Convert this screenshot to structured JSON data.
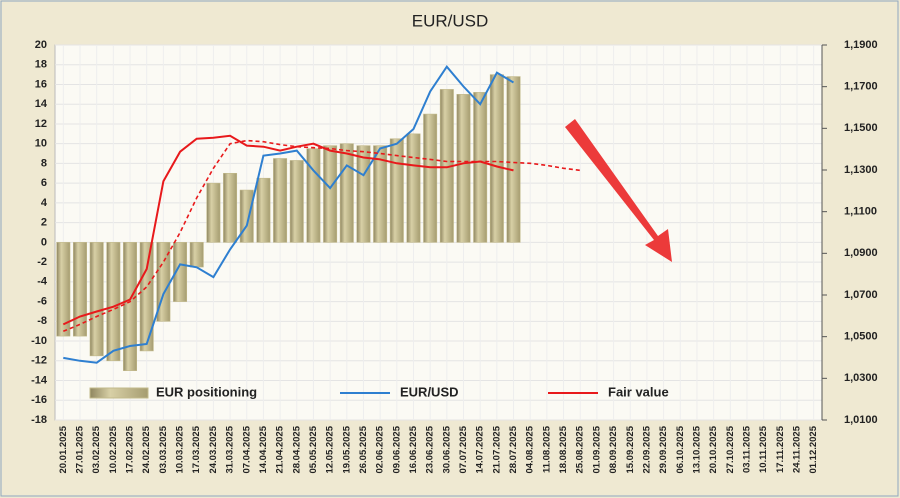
{
  "chart_data": {
    "type": "bar_line",
    "title": "EUR/USD",
    "categories": [
      "20.01.2025",
      "27.01.2025",
      "03.02.2025",
      "10.02.2025",
      "17.02.2025",
      "24.02.2025",
      "03.03.2025",
      "10.03.2025",
      "17.03.2025",
      "24.03.2025",
      "31.03.2025",
      "07.04.2025",
      "14.04.2025",
      "21.04.2025",
      "28.04.2025",
      "05.05.2025",
      "12.05.2025",
      "19.05.2025",
      "26.05.2025",
      "02.06.2025",
      "09.06.2025",
      "16.06.2025",
      "23.06.2025",
      "30.06.2025",
      "07.07.2025",
      "14.07.2025",
      "21.07.2025",
      "28.07.2025",
      "04.08.2025",
      "11.08.2025",
      "18.08.2025",
      "25.08.2025",
      "01.09.2025",
      "08.09.2025",
      "15.09.2025",
      "22.09.2025",
      "29.09.2025",
      "06.10.2025",
      "13.10.2025",
      "20.10.2025",
      "27.10.2025",
      "03.11.2025",
      "10.11.2025",
      "17.11.2025",
      "24.11.2025",
      "01.12.2025"
    ],
    "series": [
      {
        "name": "EUR positioning",
        "type": "bar",
        "color": "#c2b98a",
        "axis": "y",
        "values": [
          -9.5,
          -9.5,
          -11.5,
          -12,
          -13,
          -11,
          -8,
          -6,
          -2.5,
          6,
          7,
          5.3,
          6.5,
          8.5,
          8.3,
          9.5,
          9.8,
          10,
          9.8,
          9.8,
          10.5,
          11,
          13,
          15.5,
          15,
          15.2,
          17,
          16.8,
          null,
          null,
          null,
          null,
          null,
          null,
          null,
          null,
          null,
          null,
          null,
          null,
          null,
          null,
          null,
          null,
          null,
          null
        ]
      },
      {
        "name": "EUR/USD",
        "type": "line",
        "color": "#2e7fd0",
        "axis": "y2",
        "values": [
          1.0398,
          1.0384,
          1.0375,
          1.0432,
          1.0455,
          1.0465,
          1.0705,
          1.0847,
          1.0833,
          1.0786,
          1.0919,
          1.1033,
          1.1369,
          1.1379,
          1.1393,
          1.1298,
          1.1213,
          1.1322,
          1.1275,
          1.1403,
          1.1426,
          1.1497,
          1.1677,
          1.1796,
          1.1701,
          1.1616,
          1.1767,
          1.172,
          null,
          null,
          null,
          null,
          null,
          null,
          null,
          null,
          null,
          null,
          null,
          null,
          null,
          null,
          null,
          null,
          null,
          null
        ]
      },
      {
        "name": "Fair value",
        "type": "line",
        "color": "#e8191b",
        "axis": "y2",
        "values": [
          1.0559,
          1.0597,
          1.0621,
          1.0644,
          1.0678,
          1.0825,
          1.1246,
          1.1388,
          1.145,
          1.1455,
          1.1464,
          1.1417,
          1.1412,
          1.1393,
          1.1412,
          1.1426,
          1.1393,
          1.1379,
          1.136,
          1.1351,
          1.1332,
          1.1322,
          1.1313,
          1.1313,
          1.1332,
          1.1341,
          1.1317,
          1.1298,
          null,
          null,
          null,
          null,
          null,
          null,
          null,
          null,
          null,
          null,
          null,
          null,
          null,
          null,
          null,
          null,
          null,
          null
        ]
      },
      {
        "type": "line",
        "dashed": true,
        "color": "#e8191b",
        "axis": "y2",
        "values": [
          1.0526,
          1.0559,
          1.0597,
          1.0631,
          1.0668,
          1.0739,
          1.0858,
          1.1,
          1.1166,
          1.1308,
          1.1426,
          1.1441,
          1.1436,
          1.1422,
          1.1412,
          1.1407,
          1.1403,
          1.1393,
          1.1388,
          1.1379,
          1.1369,
          1.136,
          1.1351,
          1.1341,
          1.1341,
          1.1341,
          1.1341,
          1.1336,
          1.1332,
          1.1322,
          1.1308,
          1.1298,
          null,
          null,
          null,
          null,
          null,
          null,
          null,
          null,
          null,
          null,
          null,
          null,
          null,
          null
        ]
      }
    ],
    "ylim": [
      -18,
      20
    ],
    "yticks": [
      -18,
      -16,
      -14,
      -12,
      -10,
      -8,
      -6,
      -4,
      -2,
      0,
      2,
      4,
      6,
      8,
      10,
      12,
      14,
      16,
      18,
      20
    ],
    "y2lim": [
      1.01,
      1.19
    ],
    "y2ticks": [
      {
        "value": 1.01,
        "label": "1,0100"
      },
      {
        "value": 1.03,
        "label": "1,0300"
      },
      {
        "value": 1.05,
        "label": "1,0500"
      },
      {
        "value": 1.07,
        "label": "1,0700"
      },
      {
        "value": 1.09,
        "label": "1,0900"
      },
      {
        "value": 1.11,
        "label": "1,1100"
      },
      {
        "value": 1.13,
        "label": "1,1300"
      },
      {
        "value": 1.15,
        "label": "1,1500"
      },
      {
        "value": 1.17,
        "label": "1,1700"
      },
      {
        "value": 1.19,
        "label": "1,1900"
      }
    ],
    "grid": true,
    "legend": "bottom"
  }
}
